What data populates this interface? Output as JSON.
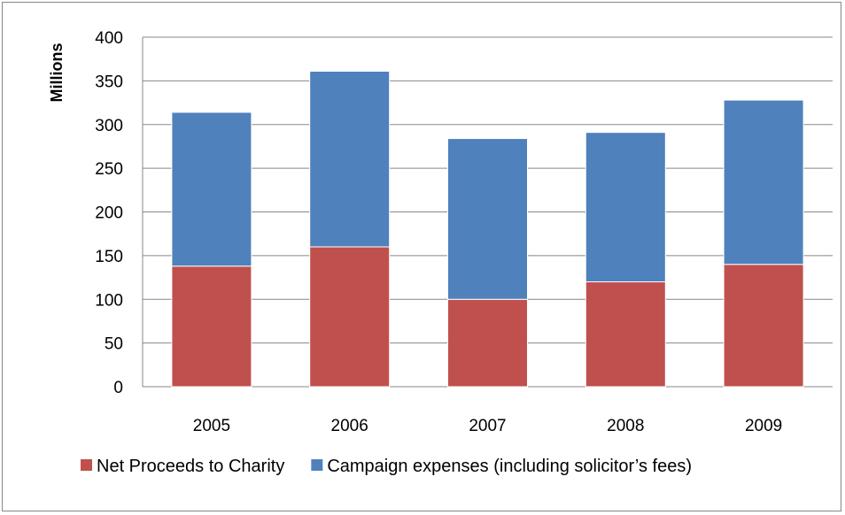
{
  "chart_data": {
    "type": "bar",
    "stacked": true,
    "categories": [
      "2005",
      "2006",
      "2007",
      "2008",
      "2009"
    ],
    "series": [
      {
        "name": "Net Proceeds to Charity",
        "values": [
          138,
          160,
          100,
          120,
          140
        ],
        "color": "#c0504d"
      },
      {
        "name": "Campaign expenses (including solicitor’s fees)",
        "values": [
          176,
          201,
          184,
          171,
          188
        ],
        "color": "#4f81bd"
      }
    ],
    "title": "",
    "xlabel": "",
    "ylabel": "Millions",
    "ylim": [
      0,
      400
    ],
    "yticks": [
      0,
      50,
      100,
      150,
      200,
      250,
      300,
      350,
      400
    ],
    "grid": true,
    "legend_position": "bottom"
  }
}
